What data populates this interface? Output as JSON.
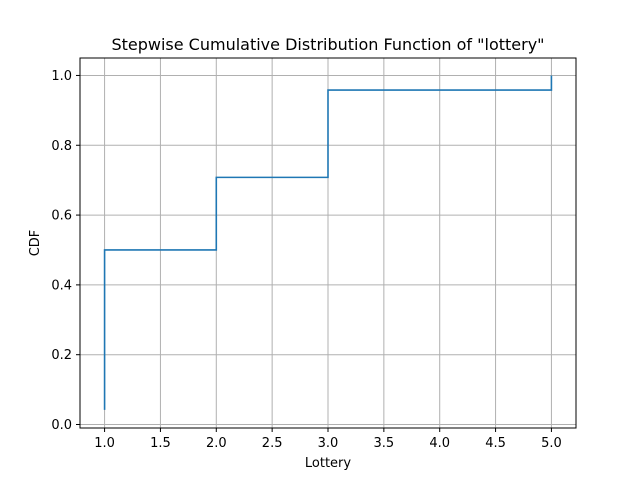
{
  "chart_data": {
    "type": "line",
    "style": "step",
    "title": "Stepwise Cumulative Distribution Function of \"lottery\"",
    "xlabel": "Lottery",
    "ylabel": "CDF",
    "xlim": [
      0.78,
      5.22
    ],
    "ylim": [
      -0.01,
      1.05
    ],
    "xticks": [
      1.0,
      1.5,
      2.0,
      2.5,
      3.0,
      3.5,
      4.0,
      4.5,
      5.0
    ],
    "xtick_labels": [
      "1.0",
      "1.5",
      "2.0",
      "2.5",
      "3.0",
      "3.5",
      "4.0",
      "4.5",
      "5.0"
    ],
    "yticks": [
      0.0,
      0.2,
      0.4,
      0.6,
      0.8,
      1.0
    ],
    "ytick_labels": [
      "0.0",
      "0.2",
      "0.4",
      "0.6",
      "0.8",
      "1.0"
    ],
    "grid": true,
    "legend": null,
    "series": [
      {
        "color": "#1f77b4",
        "x": [
          1.0,
          1.0,
          2.0,
          2.0,
          3.0,
          3.0,
          5.0,
          5.0
        ],
        "y": [
          0.042,
          0.5,
          0.5,
          0.708,
          0.708,
          0.958,
          0.958,
          1.0
        ]
      }
    ]
  },
  "colors": {
    "line": "#1f77b4",
    "grid": "#b0b0b0",
    "axes": "#000000",
    "background": "#ffffff"
  }
}
